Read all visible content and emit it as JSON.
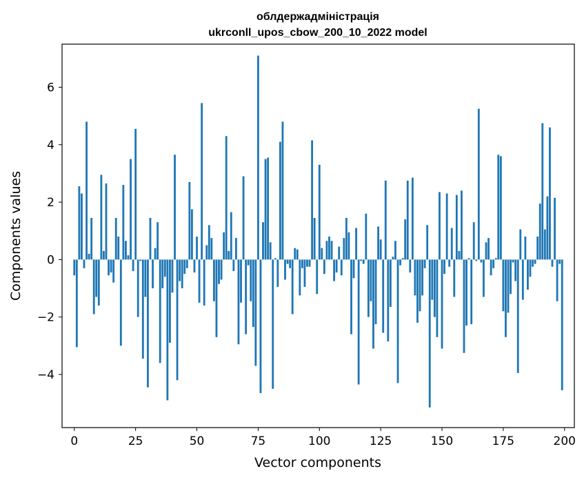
{
  "chart_data": {
    "type": "bar",
    "title": [
      "облдержадміністрація",
      "ukrconll_upos_cbow_200_10_2022 model"
    ],
    "xlabel": "Vector components",
    "ylabel": "Components values",
    "xlim": [
      -5,
      204
    ],
    "ylim": [
      -5.85,
      7.5
    ],
    "xticks": [
      0,
      25,
      50,
      75,
      100,
      125,
      150,
      175,
      200
    ],
    "yticks": [
      -4,
      -2,
      0,
      2,
      4,
      6
    ],
    "ytick_labels": [
      "−4",
      "−2",
      "0",
      "2",
      "4",
      "6"
    ],
    "bar_color": "#1f77b4",
    "grid": false,
    "x": [
      0,
      1,
      2,
      3,
      4,
      5,
      6,
      7,
      8,
      9,
      10,
      11,
      12,
      13,
      14,
      15,
      16,
      17,
      18,
      19,
      20,
      21,
      22,
      23,
      24,
      25,
      26,
      27,
      28,
      29,
      30,
      31,
      32,
      33,
      34,
      35,
      36,
      37,
      38,
      39,
      40,
      41,
      42,
      43,
      44,
      45,
      46,
      47,
      48,
      49,
      50,
      51,
      52,
      53,
      54,
      55,
      56,
      57,
      58,
      59,
      60,
      61,
      62,
      63,
      64,
      65,
      66,
      67,
      68,
      69,
      70,
      71,
      72,
      73,
      74,
      75,
      76,
      77,
      78,
      79,
      80,
      81,
      82,
      83,
      84,
      85,
      86,
      87,
      88,
      89,
      90,
      91,
      92,
      93,
      94,
      95,
      96,
      97,
      98,
      99,
      100,
      101,
      102,
      103,
      104,
      105,
      106,
      107,
      108,
      109,
      110,
      111,
      112,
      113,
      114,
      115,
      116,
      117,
      118,
      119,
      120,
      121,
      122,
      123,
      124,
      125,
      126,
      127,
      128,
      129,
      130,
      131,
      132,
      133,
      134,
      135,
      136,
      137,
      138,
      139,
      140,
      141,
      142,
      143,
      144,
      145,
      146,
      147,
      148,
      149,
      150,
      151,
      152,
      153,
      154,
      155,
      156,
      157,
      158,
      159,
      160,
      161,
      162,
      163,
      164,
      165,
      166,
      167,
      168,
      169,
      170,
      171,
      172,
      173,
      174,
      175,
      176,
      177,
      178,
      179,
      180,
      181,
      182,
      183,
      184,
      185,
      186,
      187,
      188,
      189,
      190,
      191,
      192,
      193,
      194,
      195,
      196,
      197,
      198,
      199
    ],
    "values": [
      -0.55,
      -3.05,
      2.55,
      2.3,
      -0.3,
      4.8,
      0.2,
      1.45,
      -1.9,
      -1.3,
      -1.6,
      2.95,
      0.3,
      2.65,
      -0.55,
      -0.45,
      -0.8,
      1.45,
      0.8,
      -3.0,
      2.6,
      0.65,
      0.15,
      3.5,
      -0.4,
      4.55,
      -2.0,
      -0.05,
      -3.45,
      -1.3,
      -4.45,
      1.45,
      -1.0,
      0.4,
      1.3,
      -3.6,
      -1.0,
      -0.6,
      -4.9,
      -2.9,
      -1.15,
      3.65,
      -4.2,
      -0.75,
      -1.0,
      -0.5,
      -0.3,
      2.7,
      1.75,
      -0.45,
      0.8,
      -1.5,
      5.45,
      -1.6,
      0.5,
      1.2,
      0.75,
      -1.45,
      -2.7,
      -0.85,
      -0.7,
      0.95,
      4.3,
      0.3,
      1.65,
      -0.4,
      0.75,
      -2.95,
      -1.5,
      2.9,
      -2.6,
      -0.2,
      -1.45,
      -2.35,
      -3.7,
      7.1,
      -4.65,
      1.3,
      3.5,
      3.55,
      0.6,
      -4.5,
      0.05,
      -0.95,
      4.1,
      4.8,
      -0.7,
      -0.15,
      -0.3,
      -1.9,
      0.4,
      0.35,
      -1.25,
      -0.3,
      -0.95,
      -0.25,
      -0.25,
      4.15,
      1.45,
      -1.2,
      3.3,
      0.4,
      -0.5,
      0.65,
      0.8,
      0.65,
      -0.75,
      -0.45,
      0.45,
      -0.55,
      0.75,
      1.45,
      0.95,
      -2.6,
      -0.65,
      1.1,
      -4.35,
      -0.05,
      -0.15,
      1.6,
      -2.0,
      -1.45,
      -3.1,
      -2.25,
      1.15,
      0.7,
      -2.55,
      2.75,
      -2.85,
      -1.65,
      0.1,
      0.65,
      -4.3,
      -0.2,
      0.05,
      1.4,
      2.75,
      -0.45,
      2.85,
      -1.25,
      -2.2,
      -1.8,
      -1.25,
      -0.3,
      1.2,
      -5.15,
      -1.4,
      -2.0,
      -2.7,
      2.35,
      -3.1,
      -0.5,
      2.3,
      -0.25,
      1.1,
      -1.3,
      2.25,
      0.3,
      2.4,
      -3.25,
      -2.3,
      0.05,
      -2.25,
      1.3,
      -0.05,
      5.25,
      -0.1,
      -1.3,
      0.6,
      0.75,
      -0.55,
      -0.3,
      0.05,
      3.65,
      3.6,
      -1.8,
      -2.7,
      -1.85,
      -1.2,
      -0.1,
      -0.75,
      -3.95,
      1.05,
      -1.4,
      0.8,
      -1.05,
      -0.6,
      -0.25,
      -0.15,
      0.8,
      1.95,
      4.75,
      1.05,
      2.2,
      4.6,
      -0.25,
      2.15,
      -1.45,
      -0.15,
      -4.55
    ]
  }
}
